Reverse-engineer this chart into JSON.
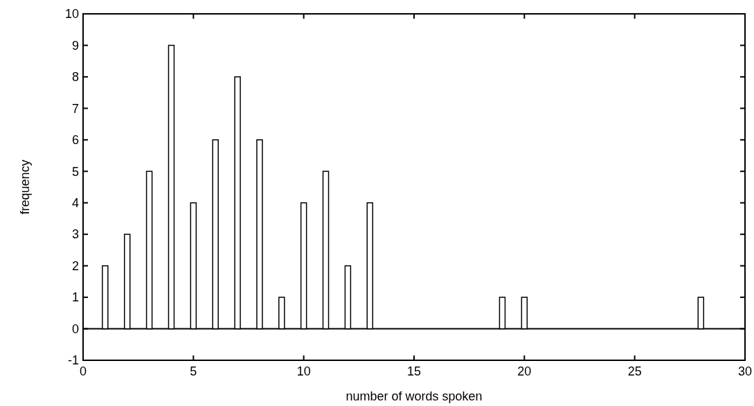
{
  "chart_data": {
    "type": "bar",
    "xlabel": "number of words spoken",
    "ylabel": "frequency",
    "x": [
      1,
      2,
      3,
      4,
      5,
      6,
      7,
      8,
      9,
      10,
      11,
      12,
      13,
      19,
      20,
      28
    ],
    "values": [
      2,
      3,
      5,
      9,
      4,
      6,
      8,
      6,
      1,
      4,
      5,
      2,
      4,
      1,
      1,
      1
    ],
    "color": "#ffffff",
    "xlim": [
      0,
      30
    ],
    "xticks": [
      0,
      5,
      10,
      15,
      20,
      25,
      30
    ],
    "ylim": [
      -1,
      10
    ],
    "yticks": [
      -1,
      0,
      1,
      2,
      3,
      4,
      5,
      6,
      7,
      8,
      9,
      10
    ],
    "ref_lines": [
      {
        "axis": "y",
        "value": 0,
        "color": "#000000"
      }
    ]
  }
}
